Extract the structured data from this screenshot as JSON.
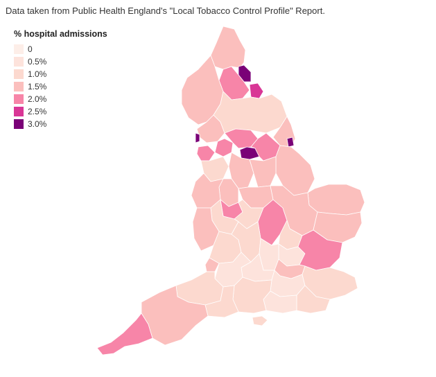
{
  "source_note": "Data taken from Public Health England's \"Local Tobacco Control Profile\" Report.",
  "legend": {
    "title": "% hospital admissions",
    "items": [
      {
        "label": "0",
        "color": "#fdeee8"
      },
      {
        "label": "0.5%",
        "color": "#fde3dc"
      },
      {
        "label": "1.0%",
        "color": "#fcd9cf"
      },
      {
        "label": "1.5%",
        "color": "#fbbfbd"
      },
      {
        "label": "2.0%",
        "color": "#f785a8"
      },
      {
        "label": "2.5%",
        "color": "#d93696"
      },
      {
        "label": "3.0%",
        "color": "#7a0177"
      }
    ]
  },
  "map": {
    "type": "choropleth",
    "region": "England",
    "regions": [
      {
        "name": "northumberland",
        "value": 1.5
      },
      {
        "name": "tyne-and-wear",
        "value": 3.0
      },
      {
        "name": "durham",
        "value": 2.0
      },
      {
        "name": "teesside",
        "value": 2.5
      },
      {
        "name": "cumbria",
        "value": 1.5
      },
      {
        "name": "north-yorkshire",
        "value": 1.0
      },
      {
        "name": "east-riding",
        "value": 1.5
      },
      {
        "name": "hull",
        "value": 3.0
      },
      {
        "name": "lancashire",
        "value": 1.5
      },
      {
        "name": "blackpool",
        "value": 3.0
      },
      {
        "name": "west-yorkshire",
        "value": 2.0
      },
      {
        "name": "leeds-bradford",
        "value": 3.0
      },
      {
        "name": "south-yorkshire",
        "value": 2.0
      },
      {
        "name": "greater-manchester",
        "value": 2.0
      },
      {
        "name": "merseyside",
        "value": 2.0
      },
      {
        "name": "cheshire",
        "value": 1.0
      },
      {
        "name": "lincolnshire",
        "value": 1.5
      },
      {
        "name": "derbyshire",
        "value": 1.5
      },
      {
        "name": "nottinghamshire",
        "value": 1.5
      },
      {
        "name": "stoke",
        "value": 3.0
      },
      {
        "name": "staffordshire",
        "value": 1.5
      },
      {
        "name": "shropshire",
        "value": 1.5
      },
      {
        "name": "west-midlands",
        "value": 2.0
      },
      {
        "name": "leicestershire",
        "value": 1.5
      },
      {
        "name": "northamptonshire",
        "value": 2.0
      },
      {
        "name": "norfolk",
        "value": 1.5
      },
      {
        "name": "suffolk",
        "value": 1.5
      },
      {
        "name": "cambridgeshire",
        "value": 1.5
      },
      {
        "name": "herefordshire",
        "value": 1.5
      },
      {
        "name": "worcestershire",
        "value": 1.0
      },
      {
        "name": "warwickshire",
        "value": 1.0
      },
      {
        "name": "gloucestershire",
        "value": 1.0
      },
      {
        "name": "oxfordshire",
        "value": 1.0
      },
      {
        "name": "buckinghamshire",
        "value": 0.5
      },
      {
        "name": "bedfordshire",
        "value": 1.0
      },
      {
        "name": "hertfordshire",
        "value": 0.5
      },
      {
        "name": "essex",
        "value": 2.0
      },
      {
        "name": "london",
        "value": 1.5
      },
      {
        "name": "kent",
        "value": 1.0
      },
      {
        "name": "surrey",
        "value": 0.5
      },
      {
        "name": "berkshire",
        "value": 0.5
      },
      {
        "name": "hampshire",
        "value": 1.0
      },
      {
        "name": "west-sussex",
        "value": 0.5
      },
      {
        "name": "east-sussex",
        "value": 1.0
      },
      {
        "name": "wiltshire",
        "value": 0.5
      },
      {
        "name": "somerset",
        "value": 1.0
      },
      {
        "name": "dorset",
        "value": 1.0
      },
      {
        "name": "devon",
        "value": 1.5
      },
      {
        "name": "cornwall",
        "value": 2.0
      },
      {
        "name": "isle-of-wight",
        "value": 1.0
      },
      {
        "name": "bristol",
        "value": 1.5
      }
    ]
  }
}
